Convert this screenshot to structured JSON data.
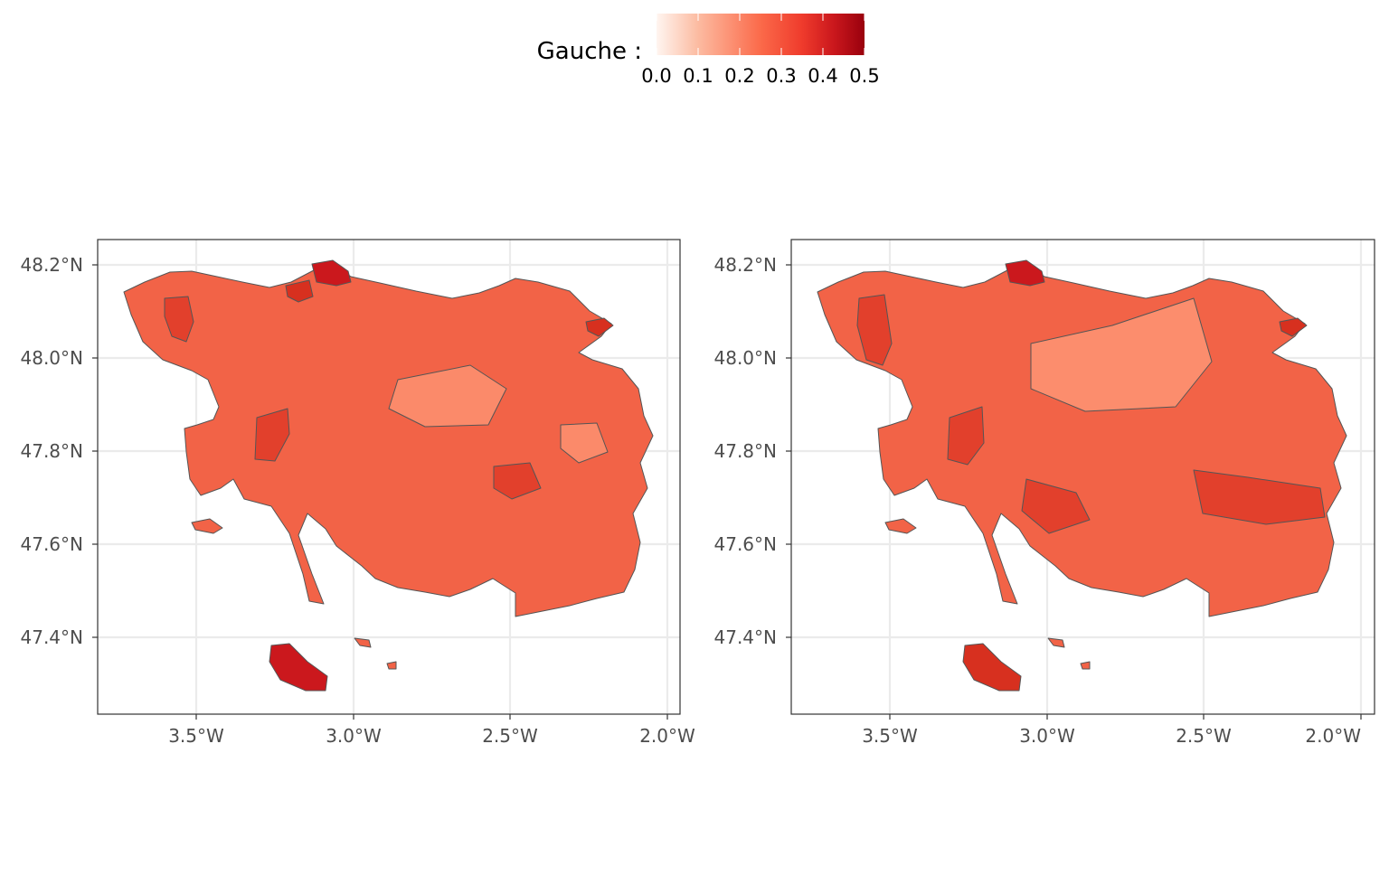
{
  "legend": {
    "title": "Gauche :",
    "min": 0.0,
    "max": 0.5,
    "ticks": [
      "0.0",
      "0.1",
      "0.2",
      "0.3",
      "0.4",
      "0.5"
    ],
    "colors": [
      "#fff5f0",
      "#fcbba1",
      "#fb6a4a",
      "#ef3b2c",
      "#cb181d",
      "#99000d"
    ]
  },
  "axes": {
    "x_ticks": [
      "3.5°W",
      "3.0°W",
      "2.5°W",
      "2.0°W"
    ],
    "y_ticks": [
      "48.2°N",
      "48.0°N",
      "47.8°N",
      "47.6°N",
      "47.4°N"
    ]
  },
  "region_border_color": "#555555",
  "chart_data": [
    {
      "type": "choropleth",
      "panel": "left",
      "xlim": [
        -3.82,
        -1.95
      ],
      "ylim": [
        47.24,
        48.26
      ],
      "grid": true,
      "value_range": [
        0.0,
        0.5
      ],
      "observed_levels": {
        "min": 0.12,
        "typical": 0.28,
        "max": 0.47
      }
    },
    {
      "type": "choropleth",
      "panel": "right",
      "xlim": [
        -3.82,
        -1.95
      ],
      "ylim": [
        47.24,
        48.26
      ],
      "grid": true,
      "value_range": [
        0.0,
        0.5
      ],
      "observed_levels": {
        "min": 0.2,
        "typical": 0.3,
        "max": 0.47
      }
    }
  ]
}
